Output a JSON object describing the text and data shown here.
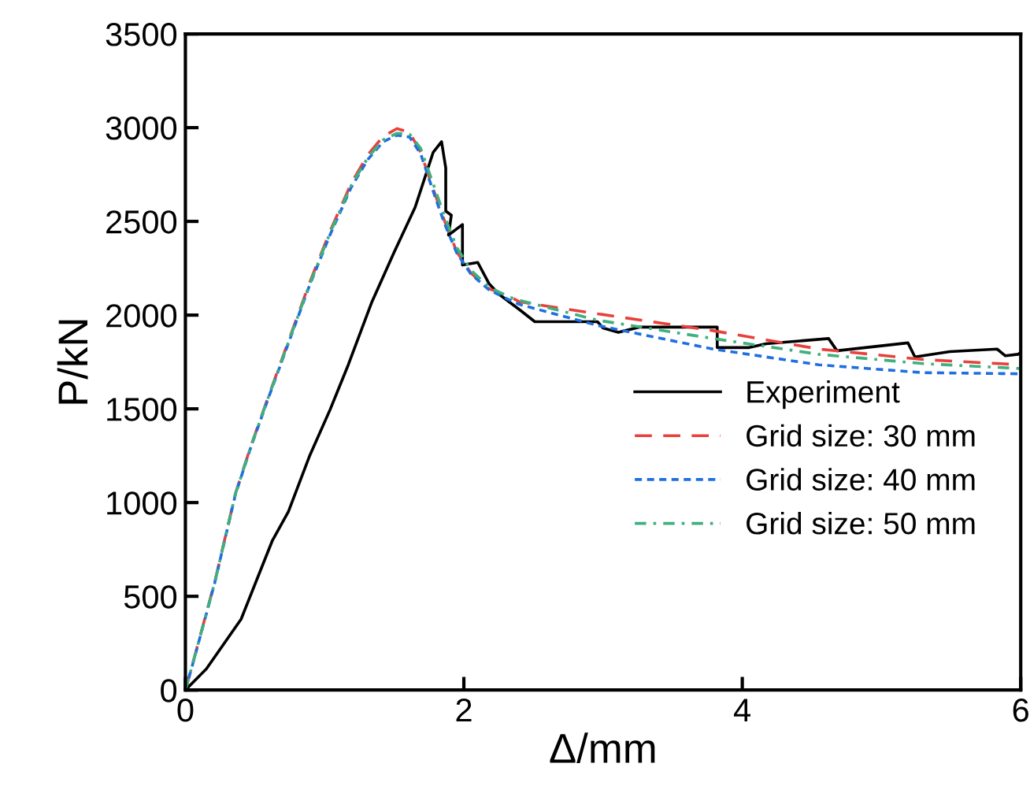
{
  "chart_data": {
    "type": "line",
    "xlabel": "Δ/mm",
    "ylabel": "P/kN",
    "xlim": [
      0,
      6
    ],
    "ylim": [
      0,
      3500
    ],
    "xticks": [
      0,
      2,
      4,
      6
    ],
    "yticks": [
      0,
      500,
      1000,
      1500,
      2000,
      2500,
      3000,
      3500
    ],
    "grid": false,
    "legend": "right",
    "marker": "none",
    "series": [
      {
        "name": "Experiment",
        "color": "#000000",
        "line_style": "solid",
        "x": [
          0,
          0.15,
          0.4,
          0.625,
          0.74,
          0.89,
          1.04,
          1.17,
          1.34,
          1.5,
          1.65,
          1.78,
          1.84,
          1.87,
          1.87,
          1.91,
          1.89,
          1.99,
          1.99,
          2.1,
          2.18,
          2.25,
          2.4,
          2.51,
          2.96,
          3.0,
          3.11,
          3.26,
          3.82,
          3.82,
          4.05,
          4.17,
          4.62,
          4.68,
          5.19,
          5.24,
          5.49,
          5.83,
          5.89,
          5.98,
          6.0
        ],
        "values": [
          0,
          112,
          378,
          798,
          952,
          1245,
          1497,
          1735,
          2071,
          2337,
          2575,
          2869,
          2925,
          2785,
          2555,
          2533,
          2427,
          2483,
          2267,
          2281,
          2169,
          2113,
          2029,
          1965,
          1965,
          1931,
          1908,
          1936,
          1936,
          1827,
          1827,
          1847,
          1875,
          1810,
          1852,
          1777,
          1805,
          1819,
          1783,
          1791,
          1800
        ]
      },
      {
        "name": "Grid size: 30 mm",
        "color": "#e8413c",
        "line_style": "dashed",
        "x": [
          0,
          0.057,
          0.21,
          0.36,
          0.47,
          0.59,
          0.74,
          0.89,
          1.04,
          1.19,
          1.31,
          1.42,
          1.52,
          1.61,
          1.69,
          1.78,
          1.86,
          1.95,
          2.05,
          2.18,
          2.33,
          2.4,
          2.96,
          3.79,
          4.55,
          5.3,
          6.0
        ],
        "values": [
          0,
          154,
          574,
          1050,
          1301,
          1553,
          1861,
          2169,
          2449,
          2701,
          2855,
          2953,
          2995,
          2975,
          2869,
          2673,
          2505,
          2337,
          2225,
          2141,
          2099,
          2071,
          2007,
          1917,
          1819,
          1763,
          1735
        ]
      },
      {
        "name": "Grid size: 40 mm",
        "color": "#1f6fe0",
        "line_style": "dotted",
        "x": [
          0,
          0.057,
          0.21,
          0.36,
          0.47,
          0.59,
          0.74,
          0.89,
          1.04,
          1.19,
          1.31,
          1.42,
          1.52,
          1.61,
          1.69,
          1.78,
          1.86,
          1.95,
          2.05,
          2.18,
          2.33,
          2.4,
          2.96,
          3.79,
          4.55,
          5.3,
          6.0
        ],
        "values": [
          0,
          150,
          570,
          1045,
          1295,
          1545,
          1850,
          2155,
          2430,
          2680,
          2830,
          2925,
          2960,
          2950,
          2860,
          2660,
          2490,
          2330,
          2220,
          2135,
          2080,
          2057,
          1945,
          1819,
          1735,
          1693,
          1687
        ]
      },
      {
        "name": "Grid size: 50 mm",
        "color": "#3fb07f",
        "line_style": "dashdot",
        "x": [
          0,
          0.057,
          0.21,
          0.36,
          0.47,
          0.59,
          0.74,
          0.89,
          1.04,
          1.19,
          1.31,
          1.42,
          1.52,
          1.61,
          1.69,
          1.78,
          1.86,
          1.95,
          2.05,
          2.18,
          2.33,
          2.4,
          2.96,
          3.79,
          4.55,
          5.3,
          6.0
        ],
        "values": [
          0,
          152,
          572,
          1048,
          1298,
          1550,
          1855,
          2160,
          2440,
          2690,
          2840,
          2935,
          2970,
          2965,
          2890,
          2700,
          2530,
          2360,
          2240,
          2150,
          2095,
          2079,
          1973,
          1875,
          1791,
          1741,
          1715
        ]
      }
    ]
  }
}
